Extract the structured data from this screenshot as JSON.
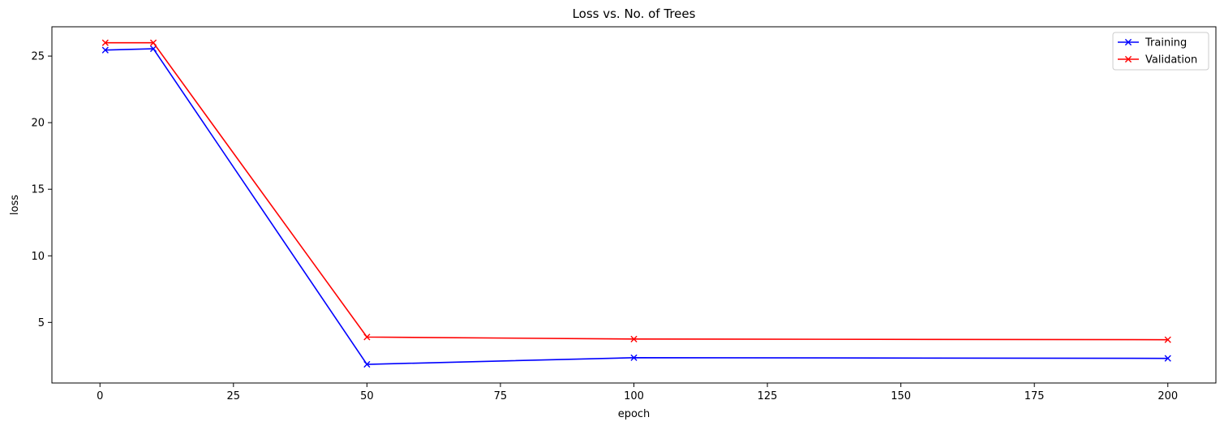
{
  "chart_data": {
    "type": "line",
    "title": "Loss vs. No. of Trees",
    "xlabel": "epoch",
    "ylabel": "loss",
    "xlim": [
      -9,
      209
    ],
    "ylim": [
      0.45,
      27.2
    ],
    "xticks": [
      0,
      25,
      50,
      75,
      100,
      125,
      150,
      175,
      200
    ],
    "yticks": [
      5,
      10,
      15,
      20,
      25
    ],
    "grid": false,
    "legend_position": "top-right",
    "marker": "x",
    "series": [
      {
        "name": "Training",
        "color": "#0000ff",
        "x": [
          1,
          10,
          50,
          100,
          200
        ],
        "y": [
          25.45,
          25.55,
          1.85,
          2.35,
          2.3
        ]
      },
      {
        "name": "Validation",
        "color": "#ff0000",
        "x": [
          1,
          10,
          50,
          100,
          200
        ],
        "y": [
          26.0,
          26.0,
          3.9,
          3.75,
          3.7
        ]
      }
    ]
  }
}
